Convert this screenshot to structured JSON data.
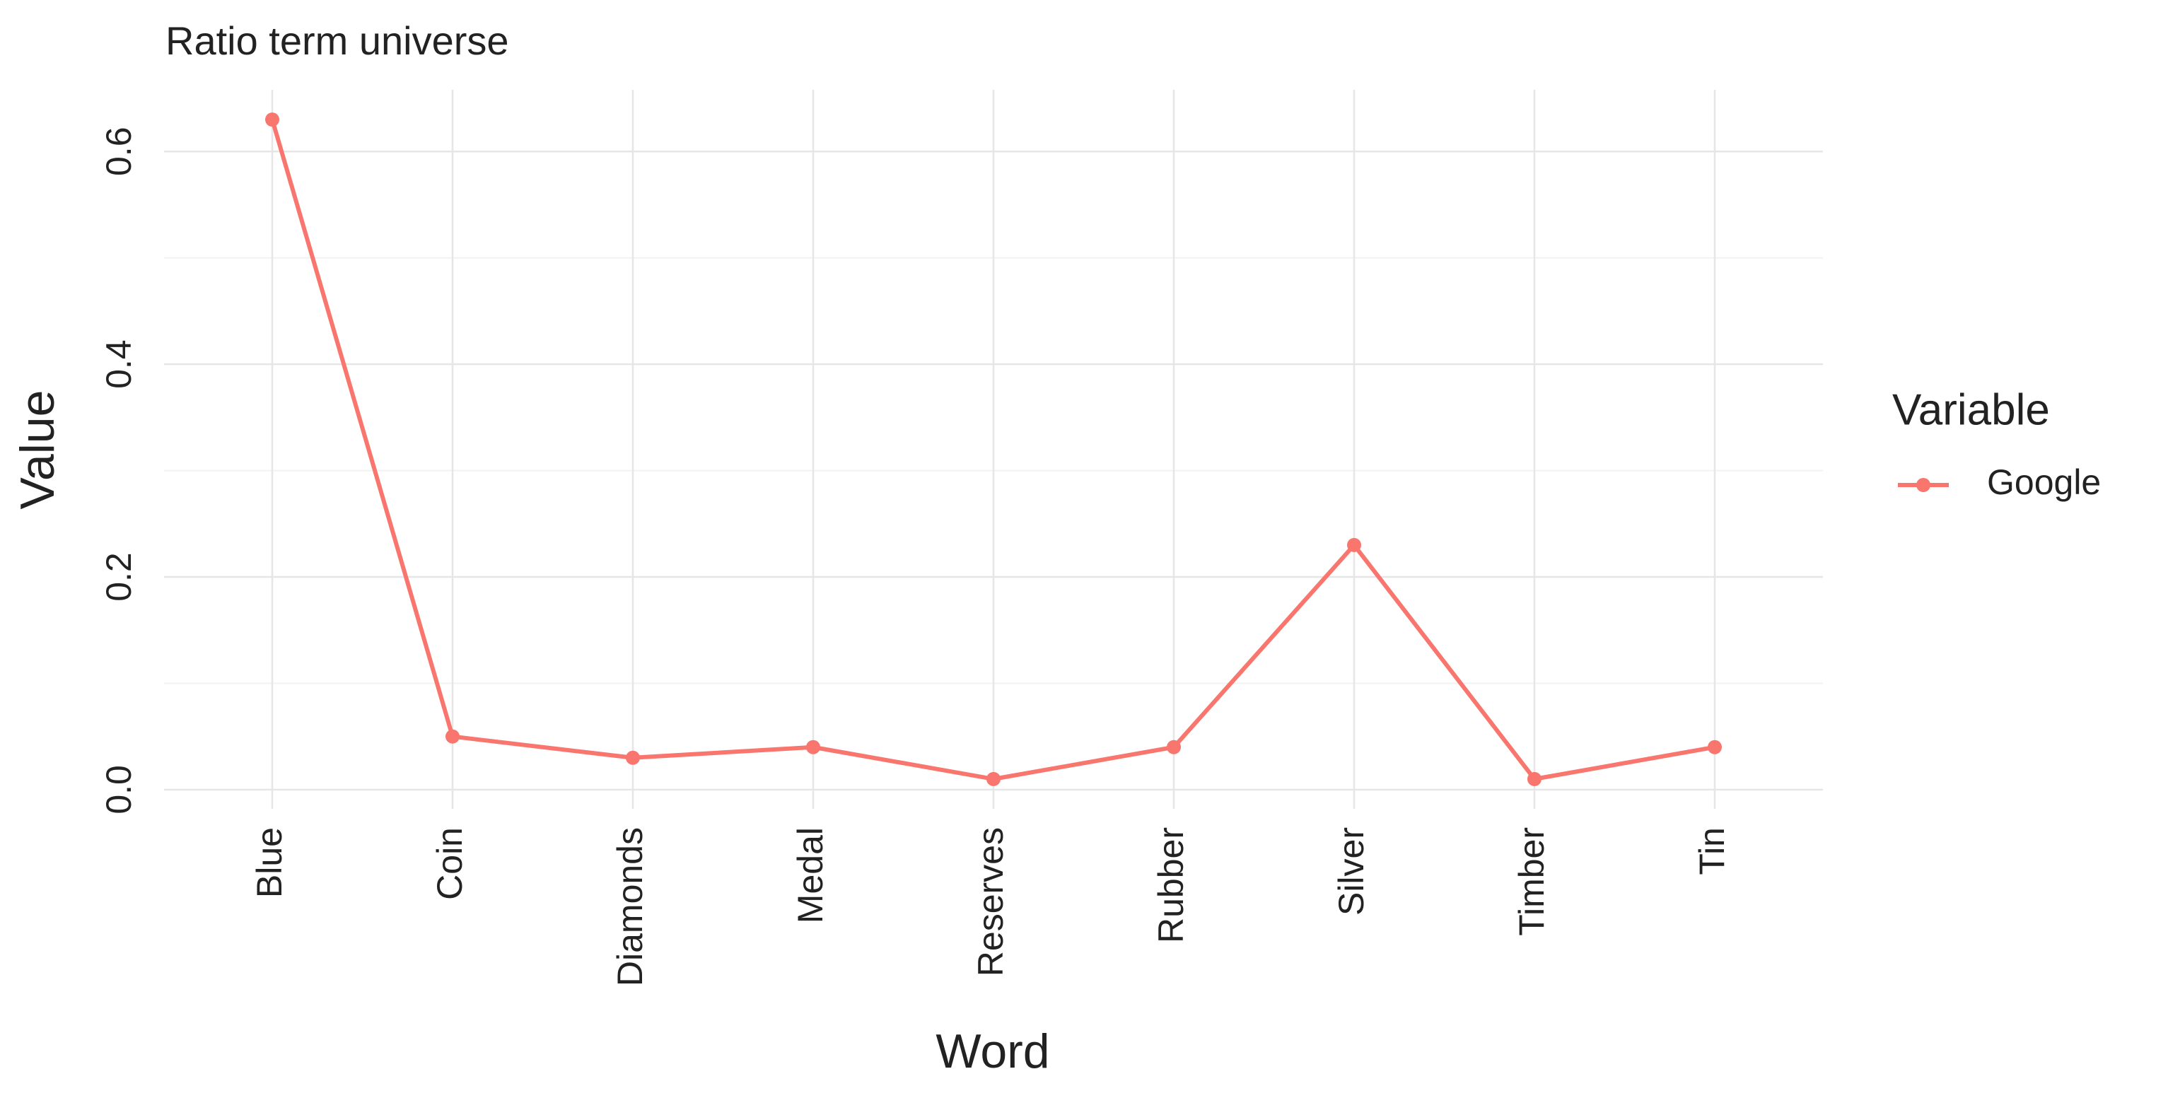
{
  "chart_data": {
    "type": "line",
    "title": "Ratio term universe",
    "x_label": "Word",
    "y_label": "Value",
    "categories": [
      "Blue",
      "Coin",
      "Diamonds",
      "Medal",
      "Reserves",
      "Rubber",
      "Silver",
      "Timber",
      "Tin"
    ],
    "series": [
      {
        "name": "Google",
        "color": "#F8766D",
        "values": [
          0.63,
          0.05,
          0.03,
          0.04,
          0.01,
          0.04,
          0.23,
          0.01,
          0.04
        ]
      }
    ],
    "ylim": [
      -0.018,
      0.658
    ],
    "yticks": [
      {
        "value": 0,
        "label": "0.0"
      },
      0.2,
      0.4,
      0.6
    ],
    "legend_title": "Variable",
    "legend": "right",
    "grid": true
  }
}
